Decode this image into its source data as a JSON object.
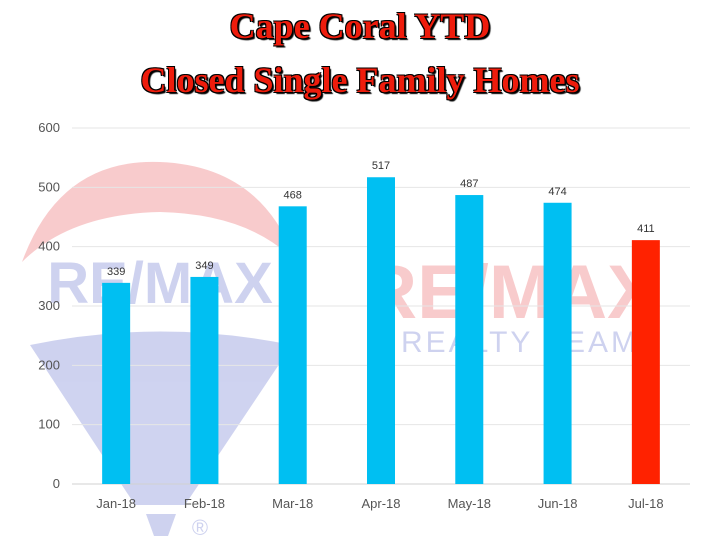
{
  "title_line1": "Cape Coral YTD",
  "title_line2": "Closed Single Family Homes",
  "watermark": {
    "logo_text": "RE/MAX",
    "sub_text": "REALTY TEAM",
    "registered_mark": "®",
    "colors": {
      "red": "#e8484d",
      "blue": "#5361c9"
    }
  },
  "chart_data": {
    "type": "bar",
    "categories": [
      "Jan-18",
      "Feb-18",
      "Mar-18",
      "Apr-18",
      "May-18",
      "Jun-18",
      "Jul-18"
    ],
    "values": [
      339,
      349,
      468,
      517,
      487,
      474,
      411
    ],
    "data_labels": [
      "339",
      "349",
      "468",
      "517",
      "487",
      "474",
      "411"
    ],
    "bar_colors": [
      "#00bff2",
      "#00bff2",
      "#00bff2",
      "#00bff2",
      "#00bff2",
      "#00bff2",
      "#ff2200"
    ],
    "ylim": [
      0,
      600
    ],
    "yticks": [
      0,
      100,
      200,
      300,
      400,
      500,
      600
    ],
    "ytick_labels": [
      "0",
      "100",
      "200",
      "300",
      "400",
      "500",
      "600"
    ],
    "grid": true,
    "xlabel": "",
    "ylabel": ""
  }
}
